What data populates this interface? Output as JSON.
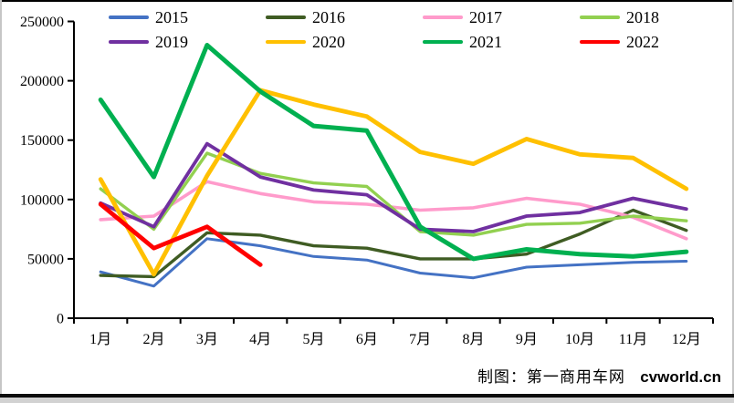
{
  "caption": {
    "text": "制图：第一商用车网",
    "site": "cvworld.cn"
  },
  "chart_data": {
    "type": "line",
    "title": "",
    "xlabel": "",
    "ylabel": "",
    "x_labels": [
      "1月",
      "2月",
      "3月",
      "4月",
      "5月",
      "6月",
      "7月",
      "8月",
      "9月",
      "10月",
      "11月",
      "12月"
    ],
    "ylim": [
      0,
      250000
    ],
    "y_ticks": [
      0,
      50000,
      100000,
      150000,
      200000,
      250000
    ],
    "grid": false,
    "legend_position": "top",
    "series": [
      {
        "name": "2015",
        "color": "#4472C4",
        "width": 3,
        "values": [
          39000,
          27000,
          67000,
          61000,
          52000,
          49000,
          38000,
          34000,
          43000,
          45000,
          47000,
          48000
        ]
      },
      {
        "name": "2016",
        "color": "#3F5C23",
        "width": 3.4,
        "values": [
          36000,
          35000,
          72000,
          70000,
          61000,
          59000,
          50000,
          50000,
          54000,
          71000,
          91000,
          74000
        ]
      },
      {
        "name": "2017",
        "color": "#FF9BCB",
        "width": 3.6,
        "values": [
          83000,
          86000,
          115000,
          105000,
          98000,
          96000,
          91000,
          93000,
          101000,
          96000,
          85000,
          67000
        ]
      },
      {
        "name": "2018",
        "color": "#92D050",
        "width": 3.4,
        "values": [
          109000,
          75000,
          139000,
          122000,
          114000,
          111000,
          73000,
          70000,
          79000,
          80000,
          86000,
          82000
        ]
      },
      {
        "name": "2019",
        "color": "#7030A0",
        "width": 3.8,
        "values": [
          97000,
          77000,
          147000,
          119000,
          108000,
          104000,
          75000,
          73000,
          86000,
          89000,
          101000,
          92000
        ]
      },
      {
        "name": "2020",
        "color": "#FFC000",
        "width": 4.8,
        "values": [
          117000,
          37000,
          120000,
          192000,
          180000,
          170000,
          140000,
          130000,
          151000,
          138000,
          135000,
          109000
        ]
      },
      {
        "name": "2021",
        "color": "#00B050",
        "width": 5,
        "values": [
          184000,
          119000,
          230000,
          191000,
          162000,
          158000,
          77000,
          50000,
          58000,
          54000,
          52000,
          56000
        ]
      },
      {
        "name": "2022",
        "color": "#FF0000",
        "width": 4.8,
        "values": [
          96000,
          59000,
          77000,
          45000,
          null,
          null,
          null,
          null,
          null,
          null,
          null,
          null
        ]
      }
    ]
  }
}
